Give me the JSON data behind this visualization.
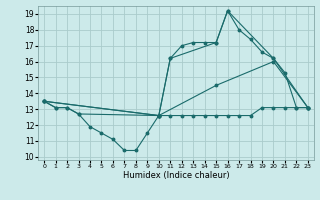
{
  "xlabel": "Humidex (Indice chaleur)",
  "bg_color": "#cceaea",
  "grid_color": "#aacccc",
  "line_color": "#1a6b6b",
  "xlim": [
    -0.5,
    23.5
  ],
  "ylim": [
    9.8,
    19.5
  ],
  "xticks": [
    0,
    1,
    2,
    3,
    4,
    5,
    6,
    7,
    8,
    9,
    10,
    11,
    12,
    13,
    14,
    15,
    16,
    17,
    18,
    19,
    20,
    21,
    22,
    23
  ],
  "yticks": [
    10,
    11,
    12,
    13,
    14,
    15,
    16,
    17,
    18,
    19
  ],
  "line1_x": [
    0,
    1,
    2,
    3,
    4,
    5,
    6,
    7,
    8,
    9,
    10,
    11,
    12,
    13,
    14,
    15,
    16,
    17,
    18,
    19,
    20,
    21,
    22,
    23
  ],
  "line1_y": [
    13.5,
    13.1,
    13.1,
    12.7,
    11.9,
    11.5,
    11.1,
    10.4,
    10.4,
    11.5,
    12.6,
    12.6,
    12.6,
    12.6,
    12.6,
    12.6,
    12.6,
    12.6,
    12.6,
    13.1,
    13.1,
    13.1,
    13.1,
    13.1
  ],
  "line2_x": [
    0,
    1,
    2,
    3,
    10,
    11,
    12,
    13,
    14,
    15,
    16,
    17,
    18,
    19,
    20,
    21,
    22,
    23
  ],
  "line2_y": [
    13.5,
    13.1,
    13.1,
    12.7,
    12.6,
    16.2,
    17.0,
    17.2,
    17.2,
    17.2,
    19.2,
    18.0,
    17.4,
    16.6,
    16.2,
    15.3,
    13.1,
    13.1
  ],
  "line3_x": [
    0,
    10,
    11,
    15,
    16,
    20,
    23
  ],
  "line3_y": [
    13.5,
    12.6,
    16.2,
    17.2,
    19.2,
    16.2,
    13.1
  ],
  "line4_x": [
    0,
    10,
    15,
    20,
    23
  ],
  "line4_y": [
    13.5,
    12.6,
    14.5,
    16.0,
    13.1
  ]
}
